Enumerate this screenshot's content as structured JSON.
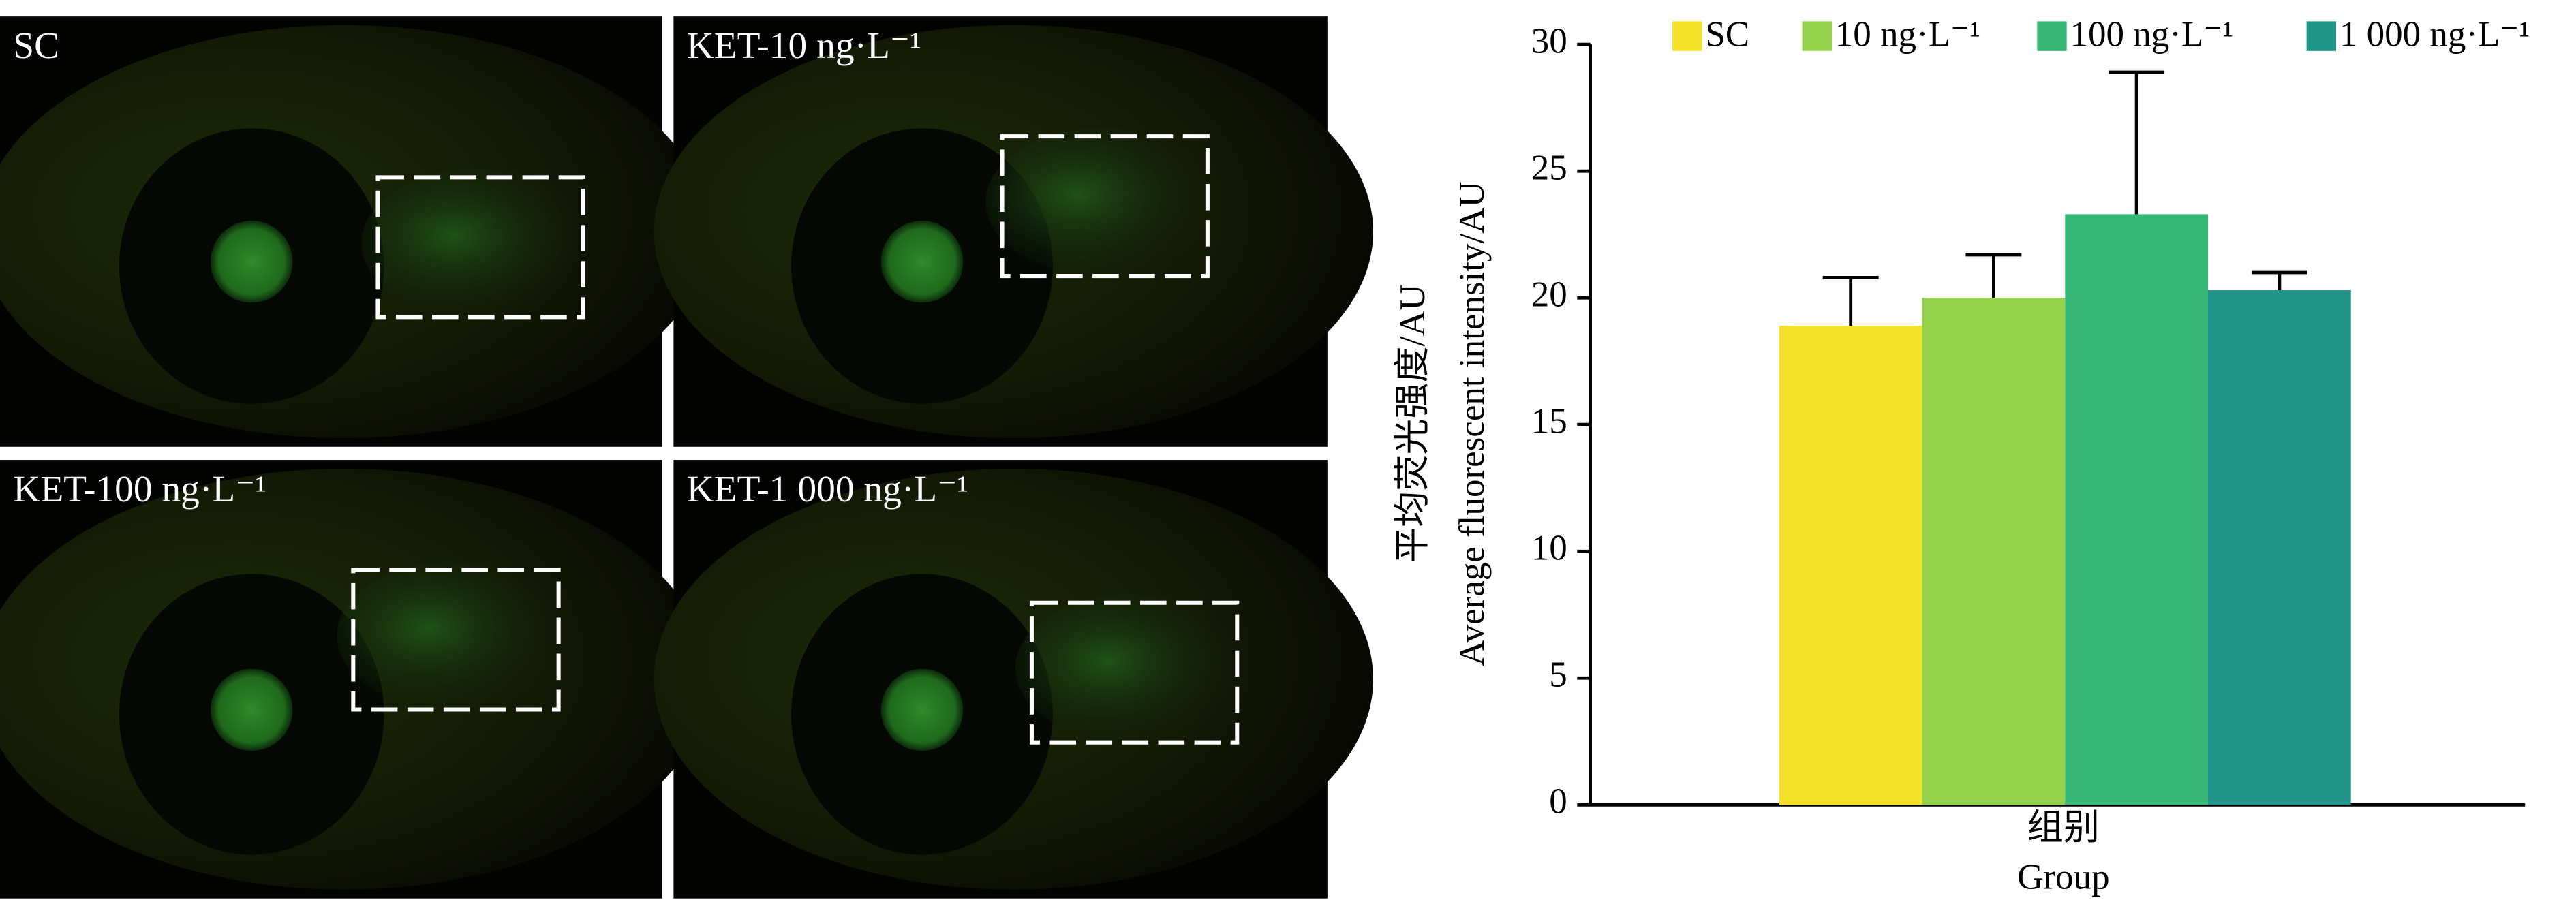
{
  "panels": [
    {
      "label": "SC"
    },
    {
      "label": "KET-10 ng·L⁻¹"
    },
    {
      "label": "KET-100 ng·L⁻¹"
    },
    {
      "label": "KET-1 000 ng·L⁻¹"
    }
  ],
  "chart_data": {
    "type": "bar",
    "y_label": [
      "平均荧光强度/AU",
      "Average fluorescent intensity/AU"
    ],
    "x_label": [
      "组别",
      "Group"
    ],
    "ylim": [
      0,
      30
    ],
    "yticks": [
      0,
      5,
      10,
      15,
      20,
      25,
      30
    ],
    "grid": false,
    "legend": "top",
    "series": [
      {
        "name": "SC",
        "color": "#f4e22a",
        "values": [
          18.9
        ],
        "errors": [
          1.9
        ]
      },
      {
        "name": "10 ng·L⁻¹",
        "color": "#93d24a",
        "values": [
          20.0
        ],
        "errors": [
          1.7
        ]
      },
      {
        "name": "100 ng·L⁻¹",
        "color": "#38b876",
        "values": [
          23.3
        ],
        "errors": [
          5.6
        ]
      },
      {
        "name": "1 000 ng·L⁻¹",
        "color": "#22958b",
        "values": [
          20.3
        ],
        "errors": [
          0.7
        ]
      }
    ]
  }
}
